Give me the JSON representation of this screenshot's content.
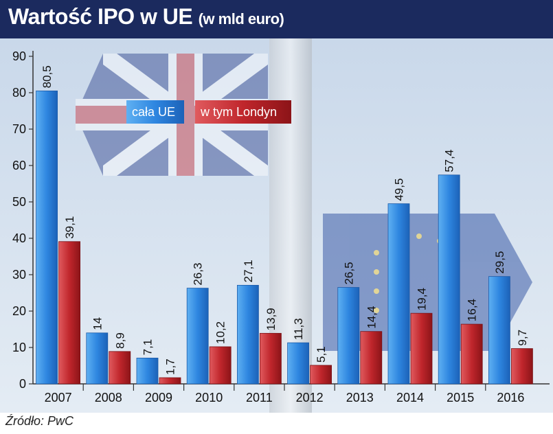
{
  "title": {
    "main": "Wartość IPO w UE",
    "sub": "(w mld euro)"
  },
  "source": "Źródło: PwC",
  "colors": {
    "header_bg": "#1b2a5e",
    "series_blue": "#2e86e0",
    "series_red": "#c0262c"
  },
  "chart_data": {
    "type": "bar",
    "title": "Wartość IPO w UE (w mld euro)",
    "xlabel": "",
    "ylabel": "",
    "ylim": [
      0,
      90
    ],
    "yticks": [
      0,
      10,
      20,
      30,
      40,
      50,
      60,
      70,
      80,
      90
    ],
    "grid": false,
    "legend_position": "top-center",
    "categories": [
      "2007",
      "2008",
      "2009",
      "2010",
      "2011",
      "2012",
      "2013",
      "2014",
      "2015",
      "2016"
    ],
    "series": [
      {
        "name": "cała UE",
        "values": [
          80.5,
          14,
          7.1,
          26.3,
          27.1,
          11.3,
          26.5,
          49.5,
          57.4,
          29.5
        ],
        "labels": [
          "80,5",
          "14",
          "7,1",
          "26,3",
          "27,1",
          "11,3",
          "26,5",
          "49,5",
          "57,4",
          "29,5"
        ]
      },
      {
        "name": "w tym Londyn",
        "values": [
          39.1,
          8.9,
          1.7,
          10.2,
          13.9,
          5.1,
          14.4,
          19.4,
          16.4,
          9.7
        ],
        "labels": [
          "39,1",
          "8,9",
          "1,7",
          "10,2",
          "13,9",
          "5,1",
          "14,4",
          "19,4",
          "16,4",
          "9,7"
        ]
      }
    ]
  }
}
